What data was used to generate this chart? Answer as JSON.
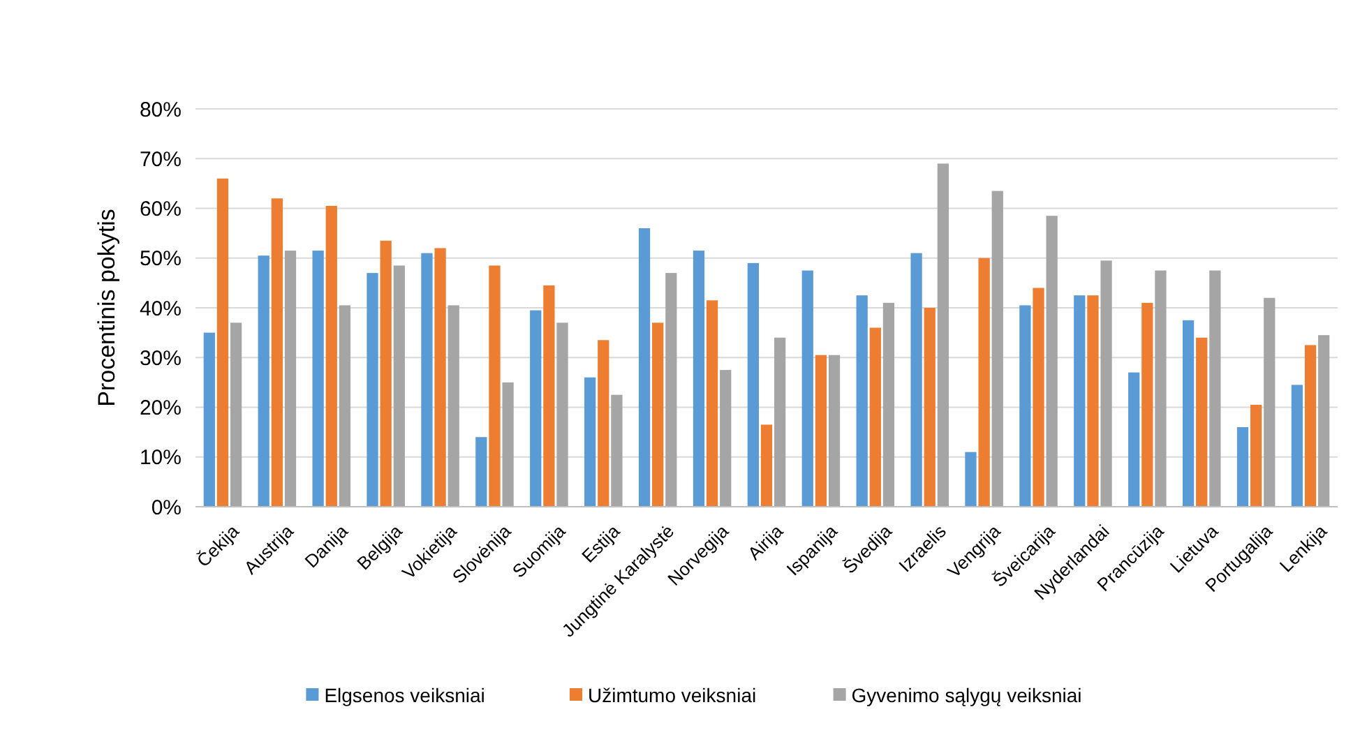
{
  "chart_data": {
    "type": "bar",
    "ylabel": "Procentinis pokytis",
    "categories": [
      "Čekija",
      "Austrija",
      "Danija",
      "Belgija",
      "Vokietija",
      "Slovėnija",
      "Suomija",
      "Estija",
      "Jungtinė Karalystė",
      "Norvegija",
      "Airija",
      "Ispanija",
      "Švedija",
      "Izraelis",
      "Vengrija",
      "Šveicarija",
      "Nyderlandai",
      "Prancūzija",
      "Lietuva",
      "Portugalija",
      "Lenkija"
    ],
    "series": [
      {
        "name": "Elgsenos veiksniai",
        "color": "#5b9bd5",
        "values": [
          35,
          50.5,
          51.5,
          47,
          51,
          14,
          39.5,
          26,
          56,
          51.5,
          49,
          47.5,
          42.5,
          51,
          11,
          40.5,
          42.5,
          27,
          37.5,
          16,
          24.5
        ]
      },
      {
        "name": "Užimtumo veiksniai",
        "color": "#ed7d31",
        "values": [
          66,
          62,
          60.5,
          53.5,
          52,
          48.5,
          44.5,
          33.5,
          37,
          41.5,
          16.5,
          30.5,
          36,
          40,
          50,
          44,
          42.5,
          41,
          34,
          20.5,
          32.5
        ]
      },
      {
        "name": "Gyvenimo sąlygų veiksniai",
        "color": "#a5a5a5",
        "values": [
          37,
          51.5,
          40.5,
          48.5,
          40.5,
          25,
          37,
          22.5,
          47,
          27.5,
          34,
          30.5,
          41,
          69,
          63.5,
          58.5,
          49.5,
          47.5,
          47.5,
          42,
          34.5
        ]
      }
    ],
    "ylim": [
      0,
      80
    ],
    "yticks": [
      {
        "value": 0,
        "label": "0%"
      },
      {
        "value": 10,
        "label": "10%"
      },
      {
        "value": 20,
        "label": "20%"
      },
      {
        "value": 30,
        "label": "30%"
      },
      {
        "value": 40,
        "label": "40%"
      },
      {
        "value": 50,
        "label": "50%"
      },
      {
        "value": 60,
        "label": "60%"
      },
      {
        "value": 70,
        "label": "70%"
      },
      {
        "value": 80,
        "label": "80%"
      }
    ],
    "grid": "y",
    "legend": "bottom"
  }
}
